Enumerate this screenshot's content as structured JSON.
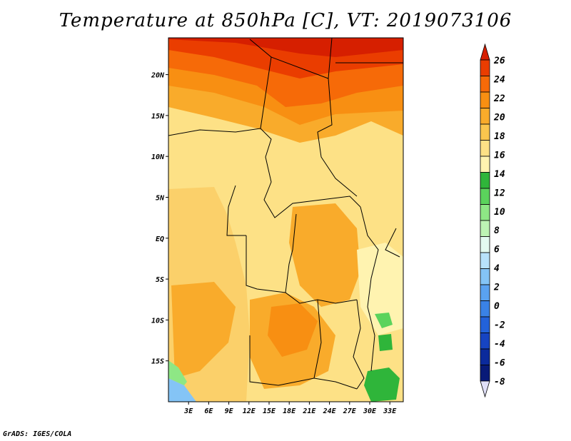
{
  "title": "Temperature at 850hPa [C], VT: 2019073106",
  "credit": "GrADS: IGES/COLA",
  "map": {
    "lat_labels": [
      "20N",
      "15N",
      "10N",
      "5N",
      "EQ",
      "5S",
      "10S",
      "15S"
    ],
    "lat_values": [
      20,
      15,
      10,
      5,
      0,
      -5,
      -10,
      -15
    ],
    "lon_labels": [
      "3E",
      "6E",
      "9E",
      "12E",
      "15E",
      "18E",
      "21E",
      "24E",
      "27E",
      "30E",
      "33E"
    ],
    "lon_values": [
      3,
      6,
      9,
      12,
      15,
      18,
      21,
      24,
      27,
      30,
      33
    ],
    "lat_range": [
      -20,
      24.5
    ],
    "lon_range": [
      0,
      35
    ]
  },
  "colorbar": {
    "labels": [
      "26",
      "24",
      "22",
      "20",
      "18",
      "16",
      "14",
      "12",
      "10",
      "8",
      "6",
      "4",
      "2",
      "0",
      "-2",
      "-4",
      "-6",
      "-8"
    ],
    "colors": [
      "#d61f00",
      "#ea3d00",
      "#f66a08",
      "#f88f12",
      "#f9ab2b",
      "#fbc64e",
      "#fde186",
      "#fff3b0",
      "#2fb53a",
      "#5bd35c",
      "#8ee785",
      "#bdf4b4",
      "#e3faf0",
      "#b8e2fb",
      "#84c4f6",
      "#5aa2f0",
      "#3a82e6",
      "#2362da",
      "#1644c2",
      "#0b2a9c",
      "#081a78",
      "#e0e0f8"
    ]
  }
}
